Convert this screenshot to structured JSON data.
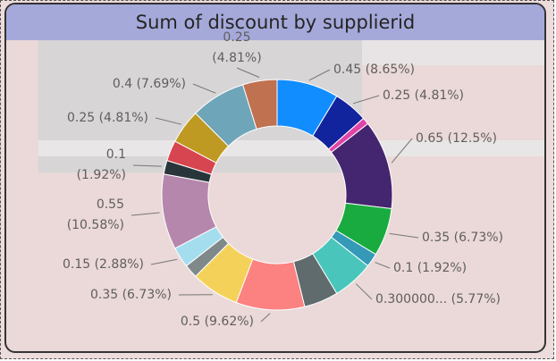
{
  "chart_data": {
    "type": "donut",
    "title": "Sum of discount by supplierid",
    "values": [
      0.45,
      0.25,
      0.05,
      0.65,
      0.35,
      0.1,
      0.3,
      0.25,
      0.5,
      0.35,
      0.1,
      0.15,
      0.55,
      0.1,
      0.15,
      0.25,
      0.4,
      0.25
    ],
    "value_labels": [
      "0.45 (8.65%)",
      "0.25 (4.81%)",
      null,
      "0.65 (12.5%)",
      "0.35 (6.73%)",
      "0.1 (1.92%)",
      "0.300000... (5.77%)",
      null,
      "0.5 (9.62%)",
      "0.35 (6.73%)",
      null,
      "0.15 (2.88%)",
      "0.55 (10.58%)",
      "0.1 (1.92%)",
      null,
      "0.25 (4.81%)",
      "0.4 (7.69%)",
      "0.25 (4.81%)"
    ],
    "colors": [
      "#118dff",
      "#12239e",
      "#e044a7",
      "#44256f",
      "#1aab40",
      "#3599b8",
      "#4ac5bb",
      "#5f6b6d",
      "#fb8281",
      "#f4d25a",
      "#7f898a",
      "#a4ddee",
      "#b687ac",
      "#28363b",
      "#d64550",
      "#bf9a22",
      "#6fa5b8",
      "#c0714f"
    ]
  }
}
